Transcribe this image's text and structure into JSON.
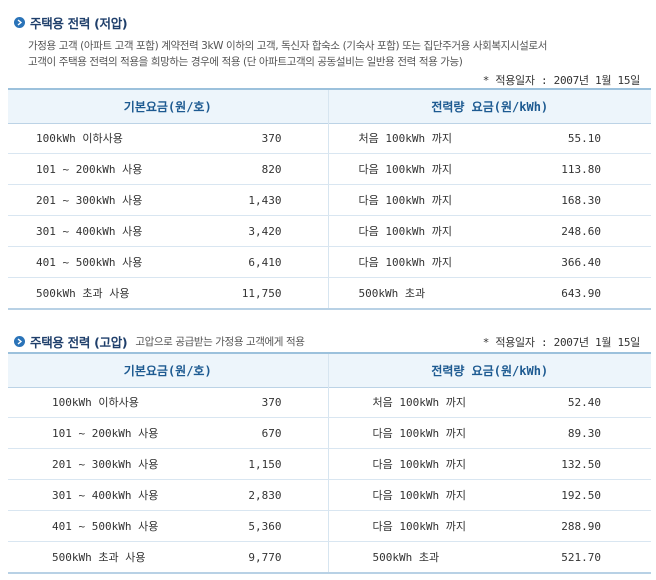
{
  "low": {
    "title": "주택용 전력 (저압)",
    "desc_lines": [
      "가정용 고객 (아파트 고객 포함) 계약전력 3kW 이하의 고객, 독신자 합숙소 (기숙사 포함) 또는 집단주거용 사회복지시설로서",
      "고객이 주택용 전력의 적용을 희망하는 경우에 적용 (단 아파트고객의 공동설비는 일반용 전력 적용 가능)"
    ],
    "date": "* 적용일자 : 2007년 1월 15일",
    "header_basic": "기본요금(원/호)",
    "header_energy": "전력량 요금(원/kWh)",
    "rows": [
      {
        "range": "100kWh 이하사용",
        "basic": "370",
        "tier": "처음 100kWh 까지",
        "energy": "55.10"
      },
      {
        "range": "101 ~ 200kWh 사용",
        "basic": "820",
        "tier": "다음 100kWh 까지",
        "energy": "113.80"
      },
      {
        "range": "201 ~ 300kWh 사용",
        "basic": "1,430",
        "tier": "다음 100kWh 까지",
        "energy": "168.30"
      },
      {
        "range": "301 ~ 400kWh 사용",
        "basic": "3,420",
        "tier": "다음 100kWh 까지",
        "energy": "248.60"
      },
      {
        "range": "401 ~ 500kWh 사용",
        "basic": "6,410",
        "tier": "다음 100kWh 까지",
        "energy": "366.40"
      },
      {
        "range": "500kWh 초과 사용",
        "basic": "11,750",
        "tier": "500kWh 초과",
        "energy": "643.90"
      }
    ]
  },
  "high": {
    "title": "주택용 전력 (고압)",
    "note": "고압으로 공급받는 가정용 고객에게 적용",
    "date": "* 적용일자 : 2007년 1월 15일",
    "header_basic": "기본요금(원/호)",
    "header_energy": "전력량 요금(원/kWh)",
    "rows": [
      {
        "range": "100kWh 이하사용",
        "basic": "370",
        "tier": "처음 100kWh 까지",
        "energy": "52.40"
      },
      {
        "range": "101 ~ 200kWh 사용",
        "basic": "670",
        "tier": "다음 100kWh 까지",
        "energy": "89.30"
      },
      {
        "range": "201 ~ 300kWh 사용",
        "basic": "1,150",
        "tier": "다음 100kWh 까지",
        "energy": "132.50"
      },
      {
        "range": "301 ~ 400kWh 사용",
        "basic": "2,830",
        "tier": "다음 100kWh 까지",
        "energy": "192.50"
      },
      {
        "range": "401 ~ 500kWh 사용",
        "basic": "5,360",
        "tier": "다음 100kWh 까지",
        "energy": "288.90"
      },
      {
        "range": "500kWh 초과 사용",
        "basic": "9,770",
        "tier": "500kWh 초과",
        "energy": "521.70"
      }
    ]
  },
  "icons": {
    "section_bullet": "chevron-right-icon"
  },
  "colors": {
    "accent": "#2a73b8",
    "header_bg": "#edf5fb",
    "header_text": "#1d5a91"
  }
}
